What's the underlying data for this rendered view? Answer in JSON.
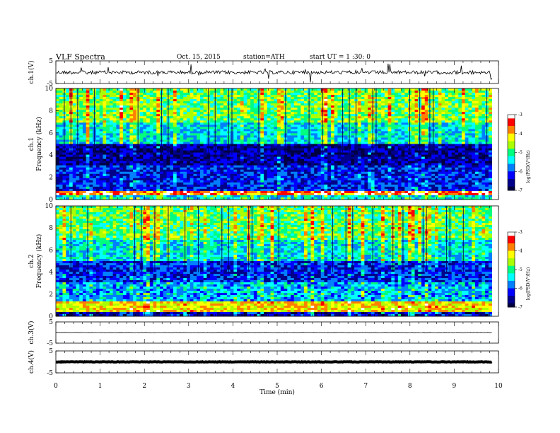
{
  "header": {
    "title": "VLF Spectra",
    "date": "Oct. 15, 2015",
    "station": "station=ATH",
    "start": "start UT =  1 :30: 0"
  },
  "colors": {
    "colormap": [
      "#000040",
      "#00008a",
      "#0000ff",
      "#007fff",
      "#00ffff",
      "#00ff7f",
      "#aaff00",
      "#ffff00",
      "#ff8000",
      "#ff0000",
      "#ffffff"
    ]
  },
  "chart_data": [
    {
      "type": "line",
      "panel": "ch1-waveform",
      "ylabel": "ch.1(V)",
      "ylim": [
        -5,
        5
      ],
      "yticks": [
        "5",
        "-5"
      ],
      "xlim": [
        0,
        10
      ],
      "trace_level": -0.1,
      "trace_end": 9.85
    },
    {
      "type": "heatmap",
      "panel": "ch1-spectrogram",
      "ylabel_ch": "ch.1",
      "ylabel": "Frequency (kHz)",
      "ylim": [
        0,
        10
      ],
      "yticks": [
        "0",
        "2",
        "4",
        "6",
        "8",
        "10"
      ],
      "xlim": [
        0,
        10
      ],
      "colorbar": {
        "label": "log(PSD(V²/Hz)",
        "range": [
          -7,
          -3
        ],
        "ticks": [
          "-3",
          "-4",
          "-5",
          "-6",
          "-7"
        ]
      },
      "bands_khz": [
        {
          "from": 0.0,
          "to": 0.4,
          "level": -5.3
        },
        {
          "from": 0.4,
          "to": 0.8,
          "level": -3.6
        },
        {
          "from": 0.8,
          "to": 3.0,
          "level": -6.2
        },
        {
          "from": 3.0,
          "to": 5.0,
          "level": -6.6
        },
        {
          "from": 5.0,
          "to": 7.0,
          "level": -5.4
        },
        {
          "from": 7.0,
          "to": 10.0,
          "level": -4.8
        }
      ]
    },
    {
      "type": "heatmap",
      "panel": "ch2-spectrogram",
      "ylabel_ch": "ch.2",
      "ylabel": "Frequency (kHz)",
      "ylim": [
        0,
        10
      ],
      "yticks": [
        "0",
        "2",
        "4",
        "6",
        "8",
        "10"
      ],
      "xlim": [
        0,
        10
      ],
      "colorbar": {
        "label": "log(PSD(V²/Hz)",
        "range": [
          -7,
          -3
        ],
        "ticks": [
          "-3",
          "-4",
          "-5",
          "-6",
          "-7"
        ]
      },
      "bands_khz": [
        {
          "from": 0.0,
          "to": 0.3,
          "level": -6.4
        },
        {
          "from": 0.3,
          "to": 1.3,
          "level": -4.2
        },
        {
          "from": 1.3,
          "to": 3.0,
          "level": -5.6
        },
        {
          "from": 3.0,
          "to": 5.0,
          "level": -6.2
        },
        {
          "from": 5.0,
          "to": 7.0,
          "level": -5.4
        },
        {
          "from": 7.0,
          "to": 10.0,
          "level": -4.9
        }
      ]
    },
    {
      "type": "line",
      "panel": "ch3-waveform",
      "ylabel": "ch.3(V)",
      "ylim": [
        -5,
        5
      ],
      "yticks": [
        "5",
        "-5"
      ],
      "xlim": [
        0,
        10
      ],
      "trace_level": 0,
      "trace_end": 9.85
    },
    {
      "type": "line",
      "panel": "ch4-waveform",
      "ylabel": "ch.4(V)",
      "ylim": [
        -5,
        5
      ],
      "yticks": [
        "5",
        "-5"
      ],
      "xlim": [
        0,
        10
      ],
      "trace_level": 0,
      "trace_end": 9.85
    }
  ],
  "xaxis": {
    "label": "Time (min)",
    "ticks": [
      "0",
      "1",
      "2",
      "3",
      "4",
      "5",
      "6",
      "7",
      "8",
      "9",
      "10"
    ],
    "range": [
      0,
      10
    ]
  }
}
